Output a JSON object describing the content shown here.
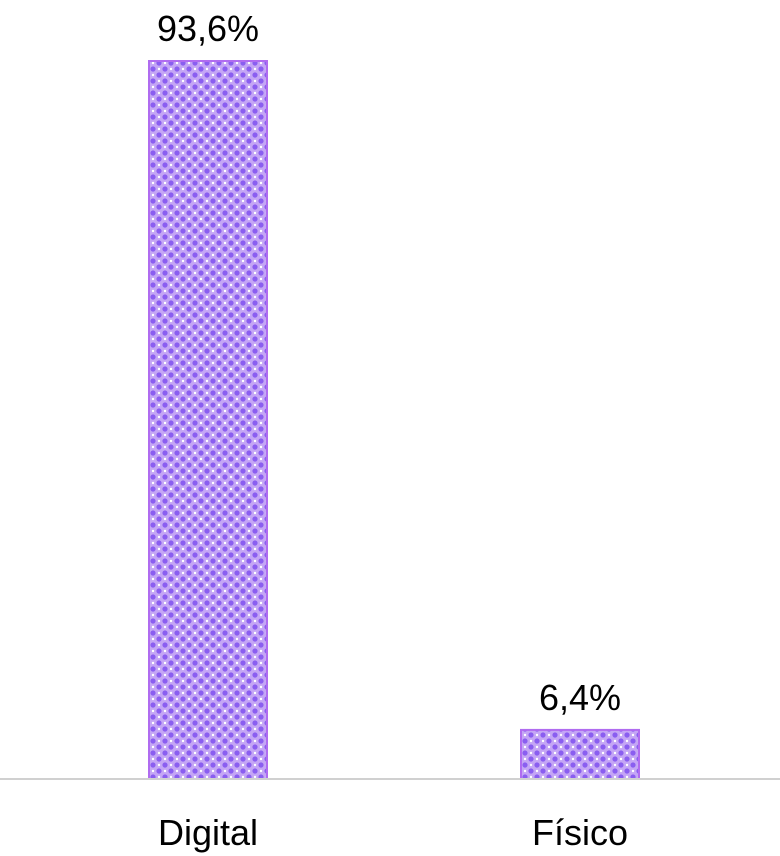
{
  "chart_data": {
    "type": "bar",
    "categories": [
      "Digital",
      "Físico"
    ],
    "values": [
      93.6,
      6.4
    ],
    "data_labels": [
      "93,6%",
      "6,4%"
    ],
    "title": "",
    "xlabel": "",
    "ylabel": "",
    "ylim": [
      0,
      100
    ],
    "grid": false,
    "legend": "none",
    "colors": {
      "bar_fill": "#b48cf2",
      "bar_pattern_dot": "#8a5ef0",
      "bar_border": "#b06cf0",
      "axis": "#d0d0d0"
    }
  }
}
